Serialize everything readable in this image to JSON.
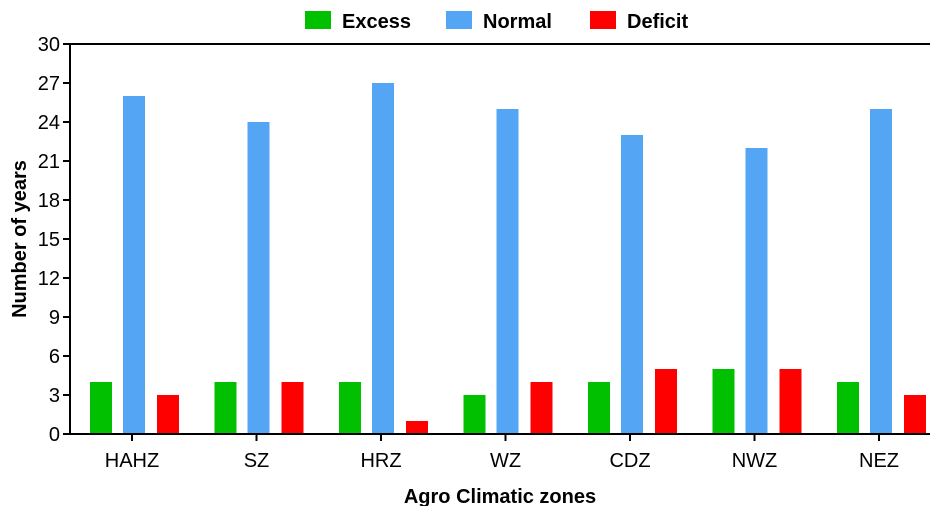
{
  "chart_data": {
    "type": "bar",
    "categories": [
      "HAHZ",
      "SZ",
      "HRZ",
      "WZ",
      "CDZ",
      "NWZ",
      "NEZ"
    ],
    "series": [
      {
        "name": "Excess",
        "color": "#00c000",
        "values": [
          4,
          4,
          4,
          3,
          4,
          5,
          4
        ]
      },
      {
        "name": "Normal",
        "color": "#55a5f5",
        "values": [
          26,
          24,
          27,
          25,
          23,
          22,
          25
        ]
      },
      {
        "name": "Deficit",
        "color": "#ff0000",
        "values": [
          3,
          4,
          1,
          4,
          5,
          5,
          3
        ]
      }
    ],
    "xlabel": "Agro Climatic zones",
    "ylabel": "Number of years",
    "ylim": [
      0,
      30
    ],
    "yticks": [
      0,
      3,
      6,
      9,
      12,
      15,
      18,
      21,
      24,
      27,
      30
    ],
    "legend_position": "top",
    "grid": false
  }
}
